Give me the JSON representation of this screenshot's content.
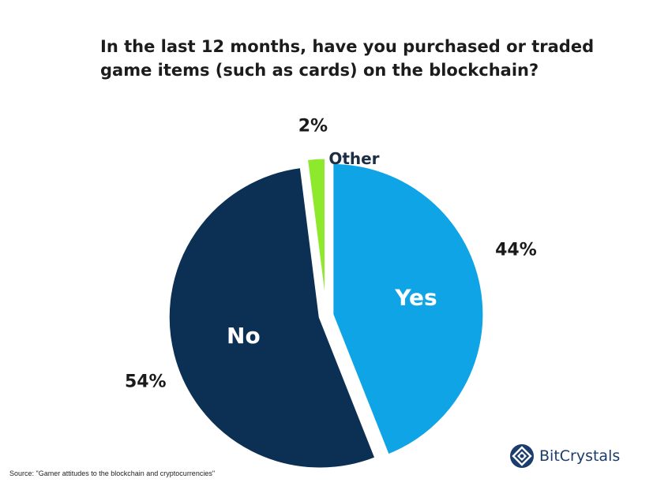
{
  "chart_data": {
    "type": "pie",
    "title": "In the last 12 months, have you purchased or traded game items (such as cards) on the blockchain?",
    "slices": [
      {
        "label": "Yes",
        "value": 44,
        "value_label": "44%",
        "color": "#0fa4e5"
      },
      {
        "label": "No",
        "value": 54,
        "value_label": "54%",
        "color": "#0c2f54"
      },
      {
        "label": "Other",
        "value": 2,
        "value_label": "2%",
        "color": "#8ee82c"
      }
    ],
    "start": "12 o'clock, clockwise",
    "exploded": true
  },
  "footer": {
    "source": "Source: \"Gamer attitudes to the blockchain and cryptocurrencies\""
  },
  "logo": {
    "brand": "BitCrystals",
    "icon": "bitcrystals-logo-icon",
    "color": "#1b3d6e"
  }
}
